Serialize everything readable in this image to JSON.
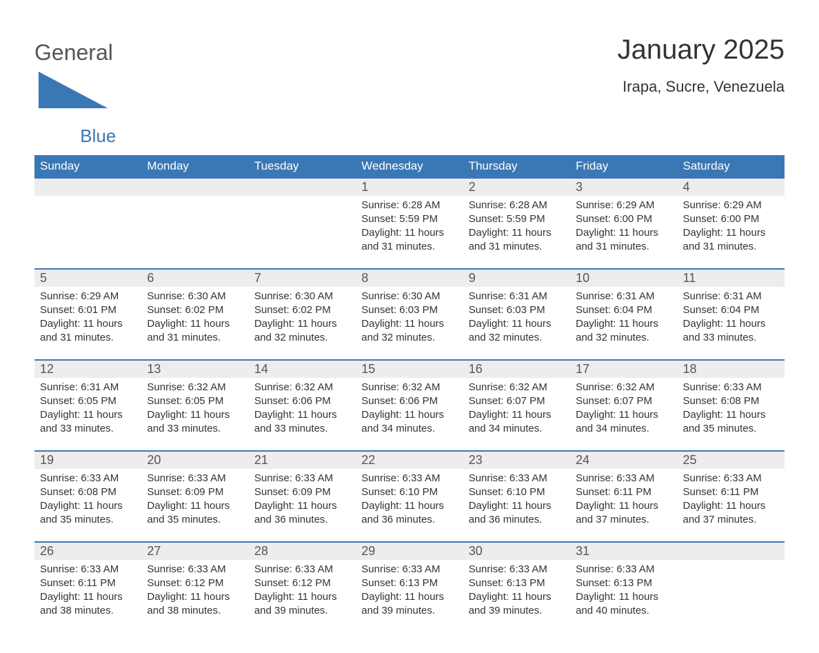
{
  "brand": {
    "name_gray": "General",
    "name_blue": "Blue",
    "icon_color": "#3a78b5"
  },
  "title": "January 2025",
  "location": "Irapa, Sucre, Venezuela",
  "colors": {
    "header_bg": "#3a78b5",
    "header_text": "#ffffff",
    "daynum_bg": "#ededed",
    "daynum_text": "#555555",
    "body_text": "#333333",
    "week_border": "#3a78b5",
    "page_bg": "#ffffff"
  },
  "typography": {
    "title_fontsize": 40,
    "location_fontsize": 22,
    "header_fontsize": 17,
    "daynum_fontsize": 18,
    "body_fontsize": 15
  },
  "layout": {
    "columns": 7,
    "rows": 5,
    "leading_empty_cells": 3
  },
  "day_headers": [
    "Sunday",
    "Monday",
    "Tuesday",
    "Wednesday",
    "Thursday",
    "Friday",
    "Saturday"
  ],
  "sunrise_label": "Sunrise: ",
  "sunset_label": "Sunset: ",
  "daylight_label_prefix": "Daylight: ",
  "days": [
    {
      "n": "1",
      "sunrise": "6:28 AM",
      "sunset": "5:59 PM",
      "daylight": "11 hours and 31 minutes."
    },
    {
      "n": "2",
      "sunrise": "6:28 AM",
      "sunset": "5:59 PM",
      "daylight": "11 hours and 31 minutes."
    },
    {
      "n": "3",
      "sunrise": "6:29 AM",
      "sunset": "6:00 PM",
      "daylight": "11 hours and 31 minutes."
    },
    {
      "n": "4",
      "sunrise": "6:29 AM",
      "sunset": "6:00 PM",
      "daylight": "11 hours and 31 minutes."
    },
    {
      "n": "5",
      "sunrise": "6:29 AM",
      "sunset": "6:01 PM",
      "daylight": "11 hours and 31 minutes."
    },
    {
      "n": "6",
      "sunrise": "6:30 AM",
      "sunset": "6:02 PM",
      "daylight": "11 hours and 31 minutes."
    },
    {
      "n": "7",
      "sunrise": "6:30 AM",
      "sunset": "6:02 PM",
      "daylight": "11 hours and 32 minutes."
    },
    {
      "n": "8",
      "sunrise": "6:30 AM",
      "sunset": "6:03 PM",
      "daylight": "11 hours and 32 minutes."
    },
    {
      "n": "9",
      "sunrise": "6:31 AM",
      "sunset": "6:03 PM",
      "daylight": "11 hours and 32 minutes."
    },
    {
      "n": "10",
      "sunrise": "6:31 AM",
      "sunset": "6:04 PM",
      "daylight": "11 hours and 32 minutes."
    },
    {
      "n": "11",
      "sunrise": "6:31 AM",
      "sunset": "6:04 PM",
      "daylight": "11 hours and 33 minutes."
    },
    {
      "n": "12",
      "sunrise": "6:31 AM",
      "sunset": "6:05 PM",
      "daylight": "11 hours and 33 minutes."
    },
    {
      "n": "13",
      "sunrise": "6:32 AM",
      "sunset": "6:05 PM",
      "daylight": "11 hours and 33 minutes."
    },
    {
      "n": "14",
      "sunrise": "6:32 AM",
      "sunset": "6:06 PM",
      "daylight": "11 hours and 33 minutes."
    },
    {
      "n": "15",
      "sunrise": "6:32 AM",
      "sunset": "6:06 PM",
      "daylight": "11 hours and 34 minutes."
    },
    {
      "n": "16",
      "sunrise": "6:32 AM",
      "sunset": "6:07 PM",
      "daylight": "11 hours and 34 minutes."
    },
    {
      "n": "17",
      "sunrise": "6:32 AM",
      "sunset": "6:07 PM",
      "daylight": "11 hours and 34 minutes."
    },
    {
      "n": "18",
      "sunrise": "6:33 AM",
      "sunset": "6:08 PM",
      "daylight": "11 hours and 35 minutes."
    },
    {
      "n": "19",
      "sunrise": "6:33 AM",
      "sunset": "6:08 PM",
      "daylight": "11 hours and 35 minutes."
    },
    {
      "n": "20",
      "sunrise": "6:33 AM",
      "sunset": "6:09 PM",
      "daylight": "11 hours and 35 minutes."
    },
    {
      "n": "21",
      "sunrise": "6:33 AM",
      "sunset": "6:09 PM",
      "daylight": "11 hours and 36 minutes."
    },
    {
      "n": "22",
      "sunrise": "6:33 AM",
      "sunset": "6:10 PM",
      "daylight": "11 hours and 36 minutes."
    },
    {
      "n": "23",
      "sunrise": "6:33 AM",
      "sunset": "6:10 PM",
      "daylight": "11 hours and 36 minutes."
    },
    {
      "n": "24",
      "sunrise": "6:33 AM",
      "sunset": "6:11 PM",
      "daylight": "11 hours and 37 minutes."
    },
    {
      "n": "25",
      "sunrise": "6:33 AM",
      "sunset": "6:11 PM",
      "daylight": "11 hours and 37 minutes."
    },
    {
      "n": "26",
      "sunrise": "6:33 AM",
      "sunset": "6:11 PM",
      "daylight": "11 hours and 38 minutes."
    },
    {
      "n": "27",
      "sunrise": "6:33 AM",
      "sunset": "6:12 PM",
      "daylight": "11 hours and 38 minutes."
    },
    {
      "n": "28",
      "sunrise": "6:33 AM",
      "sunset": "6:12 PM",
      "daylight": "11 hours and 39 minutes."
    },
    {
      "n": "29",
      "sunrise": "6:33 AM",
      "sunset": "6:13 PM",
      "daylight": "11 hours and 39 minutes."
    },
    {
      "n": "30",
      "sunrise": "6:33 AM",
      "sunset": "6:13 PM",
      "daylight": "11 hours and 39 minutes."
    },
    {
      "n": "31",
      "sunrise": "6:33 AM",
      "sunset": "6:13 PM",
      "daylight": "11 hours and 40 minutes."
    }
  ]
}
